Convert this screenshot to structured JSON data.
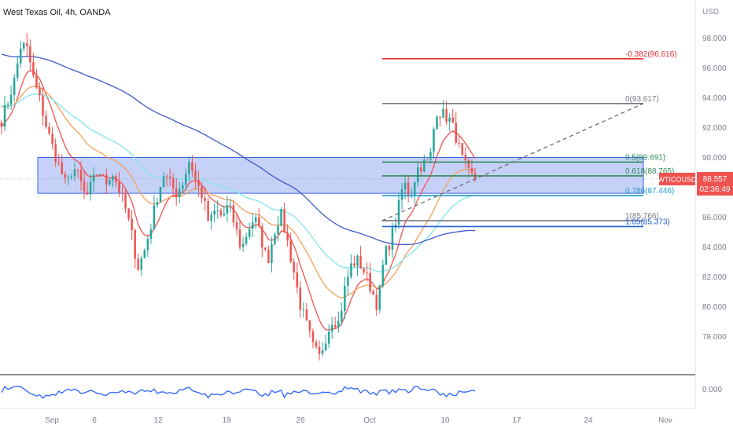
{
  "header": {
    "title": "West Texas Oil, 4h, OANDA",
    "currency": "USD"
  },
  "price_badge": {
    "symbol": "WTICOUSD",
    "price": "88.557",
    "countdown": "02:36:49",
    "color": "#ef5350"
  },
  "colors": {
    "up": "#26a69a",
    "down": "#ef5350",
    "zone_fill": "#bcc9f7",
    "zone_border": "#3b63e6",
    "ma_red": "#ef5350",
    "ma_orange": "#f5a05a",
    "ma_cyan": "#7fe7e7",
    "ma_blue": "#3f59c9",
    "rsi": "#2962ff",
    "fib_red": "#e03131",
    "fib_gray": "#787b86",
    "fib_green": "#2e8b57",
    "fib_teal": "#1e9bd6",
    "fib_blue": "#1f5fd6"
  },
  "chart_data": {
    "type": "candlestick",
    "instrument": "West Texas Oil",
    "timeframe": "4h",
    "source": "OANDA",
    "y_axis": {
      "ylim": [
        75.5,
        99.5
      ],
      "ticks": [
        "98.000",
        "96.000",
        "94.000",
        "92.000",
        "90.000",
        "88.000",
        "86.000",
        "84.000",
        "82.000",
        "80.000",
        "78.000"
      ]
    },
    "x_axis": {
      "ticks": [
        "Sep",
        "6",
        "12",
        "19",
        "26",
        "Oct",
        "10",
        "17",
        "24",
        "Nov"
      ]
    },
    "close_path": [
      92.5,
      93.8,
      95.2,
      97.6,
      97.2,
      95.1,
      93.7,
      91.9,
      90.5,
      89.3,
      88.0,
      89.4,
      88.6,
      87.2,
      88.3,
      89.2,
      88.2,
      89.1,
      88.0,
      86.7,
      85.0,
      82.6,
      83.7,
      85.4,
      87.4,
      88.9,
      88.2,
      87.6,
      88.4,
      89.9,
      88.3,
      87.4,
      85.5,
      86.5,
      86.0,
      86.8,
      85.4,
      83.8,
      85.2,
      86.0,
      84.6,
      83.0,
      85.0,
      86.3,
      84.5,
      82.5,
      80.2,
      78.8,
      77.3,
      76.6,
      78.0,
      79.2,
      78.9,
      81.4,
      82.9,
      83.1,
      82.3,
      81.2,
      80.0,
      83.4,
      84.5,
      86.2,
      88.4,
      87.3,
      89.2,
      89.6,
      89.7,
      93.2,
      92.9,
      92.6,
      91.5,
      89.9,
      88.9,
      88.56
    ],
    "fib_levels": [
      {
        "ratio": "-0.382",
        "price": 96.616,
        "label": "-0.382(96.616)",
        "color": "#e03131"
      },
      {
        "ratio": "0",
        "price": 93.617,
        "label": "0(93.617)",
        "color": "#787b86"
      },
      {
        "ratio": "0.5",
        "price": 89.691,
        "label": "0.5(89.691)",
        "color": "#2e8b57"
      },
      {
        "ratio": "0.618",
        "price": 88.765,
        "label": "0.618(88.765)",
        "color": "#2e8b57"
      },
      {
        "ratio": "0.786",
        "price": 87.446,
        "label": "0.786(87.446)",
        "color": "#1e9bd6"
      },
      {
        "ratio": "1",
        "price": 85.766,
        "label": "1(85.766)",
        "color": "#787b86"
      },
      {
        "ratio": "1.05",
        "price": 85.373,
        "label": "1.05(85.373)",
        "color": "#1f5fd6"
      }
    ],
    "zone": {
      "top": 90.0,
      "bottom": 87.6
    },
    "last_price": 88.557,
    "rsi_panel": {
      "label": "0.000"
    }
  }
}
